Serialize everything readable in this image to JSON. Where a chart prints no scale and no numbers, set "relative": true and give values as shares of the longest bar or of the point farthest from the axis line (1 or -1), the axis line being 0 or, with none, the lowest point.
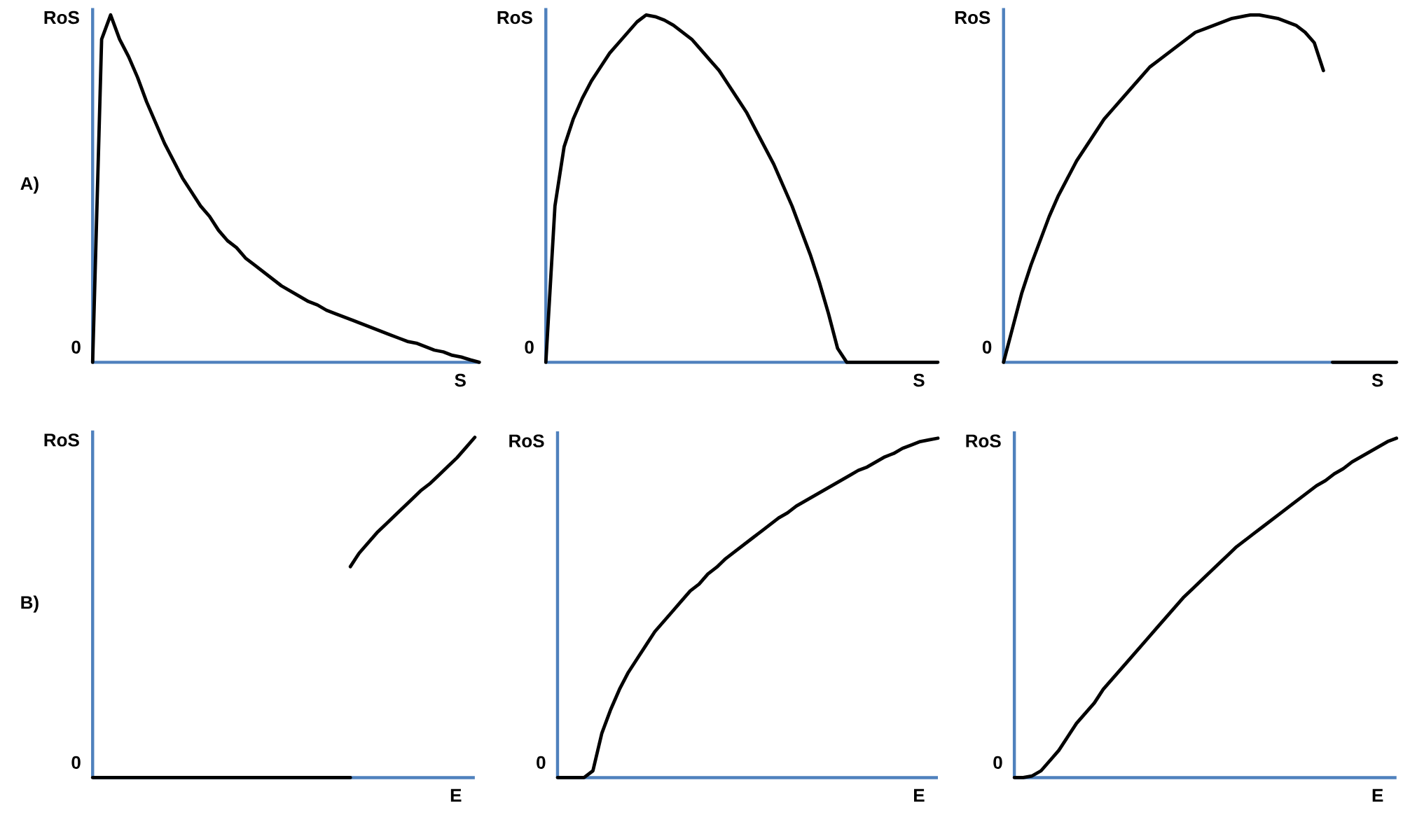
{
  "chart_data": [
    {
      "type": "line",
      "ylabel": "RoS",
      "xlabel": "S",
      "relative": true,
      "color": "#000000",
      "annotations": [
        "0",
        "A)"
      ],
      "categories": [
        null,
        null,
        null,
        null,
        null,
        null,
        null,
        null,
        null,
        null,
        null,
        null,
        null,
        null,
        null,
        null,
        null,
        null,
        null,
        null,
        null,
        null,
        null,
        null,
        null,
        null,
        null,
        null,
        null,
        null,
        null,
        null,
        null,
        null,
        null,
        null,
        null,
        null,
        null,
        null,
        null,
        null,
        null,
        null
      ],
      "values": [
        0,
        0.93,
        1.0,
        0.93,
        0.88,
        0.82,
        0.75,
        0.69,
        0.63,
        0.58,
        0.53,
        0.49,
        0.45,
        0.42,
        0.38,
        0.35,
        0.33,
        0.3,
        0.28,
        0.26,
        0.24,
        0.22,
        0.205,
        0.19,
        0.175,
        0.165,
        0.15,
        0.14,
        0.13,
        0.12,
        0.11,
        0.1,
        0.09,
        0.08,
        0.07,
        0.06,
        0.055,
        0.045,
        0.035,
        0.03,
        0.02,
        0.015,
        0.007,
        0
      ]
    },
    {
      "type": "line",
      "ylabel": "RoS",
      "xlabel": "S",
      "relative": true,
      "color": "#000000",
      "annotations": [
        "0"
      ],
      "categories": [
        null,
        null,
        null,
        null,
        null,
        null,
        null,
        null,
        null,
        null,
        null,
        null,
        null,
        null,
        null,
        null,
        null,
        null,
        null,
        null,
        null,
        null,
        null,
        null,
        null,
        null,
        null,
        null,
        null,
        null,
        null,
        null,
        null,
        null,
        null,
        null,
        null,
        null,
        null,
        null,
        null,
        null,
        null,
        null
      ],
      "values": [
        0,
        0.45,
        0.62,
        0.7,
        0.76,
        0.81,
        0.85,
        0.89,
        0.92,
        0.95,
        0.98,
        1.0,
        0.995,
        0.985,
        0.97,
        0.95,
        0.93,
        0.9,
        0.87,
        0.84,
        0.8,
        0.76,
        0.72,
        0.67,
        0.62,
        0.57,
        0.51,
        0.45,
        0.38,
        0.31,
        0.23,
        0.14,
        0.04,
        0,
        0,
        0,
        0,
        0,
        0,
        0,
        0,
        0,
        0,
        0
      ]
    },
    {
      "type": "line",
      "ylabel": "RoS",
      "xlabel": "S",
      "relative": true,
      "annotations": [
        "0"
      ],
      "categories": [
        null,
        null,
        null,
        null,
        null,
        null,
        null,
        null,
        null,
        null,
        null,
        null,
        null,
        null,
        null,
        null,
        null,
        null,
        null,
        null,
        null,
        null,
        null,
        null,
        null,
        null,
        null,
        null,
        null,
        null,
        null,
        null,
        null,
        null,
        null,
        null,
        null,
        null,
        null,
        null,
        null,
        null,
        null,
        null
      ],
      "series": [
        {
          "color": "#000000",
          "values": [
            0,
            0.1,
            0.2,
            0.28,
            0.35,
            0.42,
            0.48,
            0.53,
            0.58,
            0.62,
            0.66,
            0.7,
            0.73,
            0.76,
            0.79,
            0.82,
            0.85,
            0.87,
            0.89,
            0.91,
            0.93,
            0.95,
            0.96,
            0.97,
            0.98,
            0.99,
            0.995,
            1.0,
            1.0,
            0.995,
            0.99,
            0.98,
            0.97,
            0.95,
            0.92,
            0.84,
            null,
            null,
            null,
            null,
            null,
            null,
            null,
            null
          ]
        },
        {
          "color": "#000000",
          "values": [
            null,
            null,
            null,
            null,
            null,
            null,
            null,
            null,
            null,
            null,
            null,
            null,
            null,
            null,
            null,
            null,
            null,
            null,
            null,
            null,
            null,
            null,
            null,
            null,
            null,
            null,
            null,
            null,
            null,
            null,
            null,
            null,
            null,
            null,
            null,
            null,
            0,
            0,
            0,
            0,
            0,
            0,
            0,
            0
          ]
        }
      ]
    },
    {
      "type": "line",
      "ylabel": "RoS",
      "xlabel": "E",
      "relative": true,
      "annotations": [
        "0",
        "B)"
      ],
      "categories": [
        null,
        null,
        null,
        null,
        null,
        null,
        null,
        null,
        null,
        null,
        null,
        null,
        null,
        null,
        null,
        null,
        null,
        null,
        null,
        null,
        null,
        null,
        null,
        null,
        null,
        null,
        null,
        null,
        null,
        null,
        null,
        null,
        null,
        null,
        null,
        null,
        null,
        null,
        null,
        null,
        null,
        null,
        null,
        null
      ],
      "series": [
        {
          "color": "#000000",
          "values": [
            0,
            0,
            0,
            0,
            0,
            0,
            0,
            0,
            0,
            0,
            0,
            0,
            0,
            0,
            0,
            0,
            0,
            0,
            0,
            0,
            0,
            0,
            0,
            0,
            0,
            0,
            0,
            0,
            0,
            0,
            null,
            null,
            null,
            null,
            null,
            null,
            null,
            null,
            null,
            null,
            null,
            null,
            null,
            null
          ]
        },
        {
          "color": "#000000",
          "values": [
            null,
            null,
            null,
            null,
            null,
            null,
            null,
            null,
            null,
            null,
            null,
            null,
            null,
            null,
            null,
            null,
            null,
            null,
            null,
            null,
            null,
            null,
            null,
            null,
            null,
            null,
            null,
            null,
            null,
            0.62,
            0.66,
            0.69,
            0.72,
            0.745,
            0.77,
            0.795,
            0.82,
            0.845,
            0.865,
            0.89,
            0.915,
            0.94,
            0.97,
            1.0
          ]
        }
      ]
    },
    {
      "type": "line",
      "ylabel": "RoS",
      "xlabel": "E",
      "relative": true,
      "color": "#000000",
      "annotations": [
        "0"
      ],
      "categories": [
        null,
        null,
        null,
        null,
        null,
        null,
        null,
        null,
        null,
        null,
        null,
        null,
        null,
        null,
        null,
        null,
        null,
        null,
        null,
        null,
        null,
        null,
        null,
        null,
        null,
        null,
        null,
        null,
        null,
        null,
        null,
        null,
        null,
        null,
        null,
        null,
        null,
        null,
        null,
        null,
        null,
        null,
        null,
        null
      ],
      "values": [
        0,
        0,
        0,
        0,
        0.02,
        0.13,
        0.2,
        0.26,
        0.31,
        0.35,
        0.39,
        0.43,
        0.46,
        0.49,
        0.52,
        0.55,
        0.57,
        0.6,
        0.62,
        0.645,
        0.665,
        0.685,
        0.705,
        0.725,
        0.745,
        0.765,
        0.78,
        0.8,
        0.815,
        0.83,
        0.845,
        0.86,
        0.875,
        0.89,
        0.905,
        0.915,
        0.93,
        0.945,
        0.955,
        0.97,
        0.98,
        0.99,
        0.995,
        1.0
      ]
    },
    {
      "type": "line",
      "ylabel": "RoS",
      "xlabel": "E",
      "relative": true,
      "color": "#000000",
      "annotations": [
        "0"
      ],
      "categories": [
        null,
        null,
        null,
        null,
        null,
        null,
        null,
        null,
        null,
        null,
        null,
        null,
        null,
        null,
        null,
        null,
        null,
        null,
        null,
        null,
        null,
        null,
        null,
        null,
        null,
        null,
        null,
        null,
        null,
        null,
        null,
        null,
        null,
        null,
        null,
        null,
        null,
        null,
        null,
        null,
        null,
        null,
        null,
        null
      ],
      "values": [
        0,
        0,
        0.005,
        0.02,
        0.05,
        0.08,
        0.12,
        0.16,
        0.19,
        0.22,
        0.26,
        0.29,
        0.32,
        0.35,
        0.38,
        0.41,
        0.44,
        0.47,
        0.5,
        0.53,
        0.555,
        0.58,
        0.605,
        0.63,
        0.655,
        0.68,
        0.7,
        0.72,
        0.74,
        0.76,
        0.78,
        0.8,
        0.82,
        0.84,
        0.86,
        0.875,
        0.895,
        0.91,
        0.93,
        0.945,
        0.96,
        0.975,
        0.99,
        1.0
      ]
    }
  ]
}
